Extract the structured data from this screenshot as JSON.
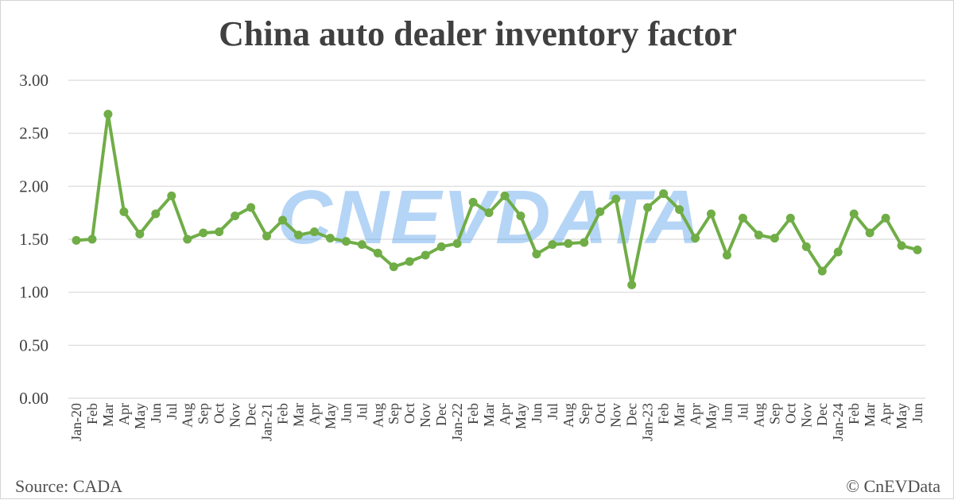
{
  "footer": {
    "source": "Source: CADA",
    "copyright": "© CnEVData"
  },
  "watermark": "CNEVDATA",
  "colors": {
    "line": "#70ad47",
    "grid": "#d9d9d9",
    "text": "#404040",
    "watermark": "#5aa2ea"
  },
  "chart_data": {
    "type": "line",
    "title": "China auto dealer inventory factor",
    "xlabel": "",
    "ylabel": "",
    "ylim": [
      0,
      3
    ],
    "yticks": [
      "0.00",
      "0.50",
      "1.00",
      "1.50",
      "2.00",
      "2.50",
      "3.00"
    ],
    "grid": true,
    "legend": "none",
    "categories": [
      "Jan-20",
      "Feb",
      "Mar",
      "Apr",
      "May",
      "Jun",
      "Jul",
      "Aug",
      "Sep",
      "Oct",
      "Nov",
      "Dec",
      "Jan-21",
      "Feb",
      "Mar",
      "Apr",
      "May",
      "Jun",
      "Jul",
      "Aug",
      "Sep",
      "Oct",
      "Nov",
      "Dec",
      "Jan-22",
      "Feb",
      "Mar",
      "Apr",
      "May",
      "Jun",
      "Jul",
      "Aug",
      "Sep",
      "Oct",
      "Nov",
      "Dec",
      "Jan-23",
      "Feb",
      "Mar",
      "Apr",
      "May",
      "Jun",
      "Jul",
      "Aug",
      "Sep",
      "Oct",
      "Nov",
      "Dec",
      "Jan-24",
      "Feb",
      "Mar",
      "Apr",
      "May",
      "Jun"
    ],
    "series": [
      {
        "values": [
          1.49,
          1.5,
          2.68,
          1.76,
          1.55,
          1.74,
          1.91,
          1.5,
          1.56,
          1.57,
          1.72,
          1.8,
          1.53,
          1.68,
          1.54,
          1.57,
          1.51,
          1.48,
          1.45,
          1.37,
          1.24,
          1.29,
          1.35,
          1.43,
          1.46,
          1.85,
          1.75,
          1.91,
          1.72,
          1.36,
          1.45,
          1.46,
          1.47,
          1.76,
          1.88,
          1.07,
          1.8,
          1.93,
          1.78,
          1.51,
          1.74,
          1.35,
          1.7,
          1.54,
          1.51,
          1.7,
          1.43,
          1.2,
          1.38,
          1.74,
          1.56,
          1.7,
          1.44,
          1.4
        ]
      }
    ]
  }
}
